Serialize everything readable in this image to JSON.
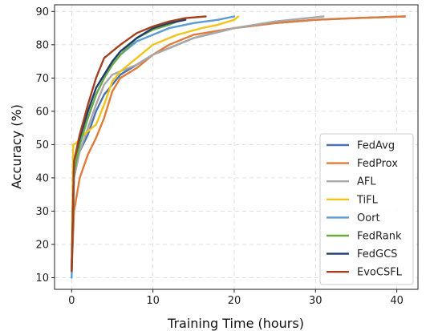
{
  "chart_data": {
    "type": "line",
    "title": "",
    "xlabel": "Training Time (hours)",
    "ylabel": "Accuracy (%)",
    "xlim": [
      -2.1,
      42.6
    ],
    "ylim": [
      6.5,
      92
    ],
    "xticks": [
      0,
      10,
      20,
      30,
      40
    ],
    "yticks": [
      10,
      20,
      30,
      40,
      50,
      60,
      70,
      80,
      90
    ],
    "grid": true,
    "legend_position": "bottom-right",
    "series": [
      {
        "name": "FedAvg",
        "color": "#4a72b0",
        "x": [
          0,
          0.3,
          1,
          2,
          3,
          4,
          5,
          6,
          8,
          10,
          12,
          15,
          20,
          25,
          30,
          35,
          41
        ],
        "y": [
          12,
          42,
          48,
          53,
          60,
          65,
          68,
          71,
          74,
          77,
          79,
          82,
          85,
          86.5,
          87.5,
          88,
          88.5
        ]
      },
      {
        "name": "FedProx",
        "color": "#e07b39",
        "x": [
          0,
          0.3,
          1,
          2,
          3,
          4,
          5,
          6,
          8,
          10,
          12,
          15,
          20,
          25,
          30,
          35,
          41
        ],
        "y": [
          12,
          30,
          40,
          47,
          52,
          58,
          66,
          70,
          73,
          77,
          80,
          83,
          85,
          86.5,
          87.5,
          88,
          88.5
        ]
      },
      {
        "name": "AFL",
        "color": "#a8a8a8",
        "x": [
          0,
          0.3,
          1,
          2,
          3,
          4,
          5,
          6,
          8,
          10,
          12,
          15,
          20,
          25,
          31
        ],
        "y": [
          12,
          40,
          48,
          55,
          62,
          68,
          71,
          72,
          74,
          77,
          79,
          82,
          85,
          87,
          88.5
        ]
      },
      {
        "name": "TiFL",
        "color": "#f2c418",
        "x": [
          0,
          0.2,
          0.6,
          1.5,
          3,
          4,
          5,
          6,
          8,
          10,
          13,
          16,
          18,
          20,
          20.5
        ],
        "y": [
          12,
          50,
          50.5,
          53,
          56,
          62,
          69,
          72,
          76,
          80,
          83,
          85,
          86,
          87.5,
          88.5
        ]
      },
      {
        "name": "Oort",
        "color": "#5b9bd5",
        "x": [
          0,
          0.3,
          1,
          2,
          3,
          4,
          5,
          6,
          8,
          10,
          12,
          15,
          18,
          20
        ],
        "y": [
          10,
          42,
          50,
          58,
          65,
          70,
          74,
          77,
          81,
          83,
          85,
          86.5,
          87.5,
          88.5
        ]
      },
      {
        "name": "FedRank",
        "color": "#6aaa40",
        "x": [
          0,
          0.3,
          1,
          2,
          3,
          4,
          5,
          6,
          8,
          10,
          12,
          13
        ],
        "y": [
          12,
          42,
          50,
          58,
          65,
          70,
          74,
          77,
          82,
          84.5,
          86,
          87
        ]
      },
      {
        "name": "FedGCS",
        "color": "#1f3d6e",
        "x": [
          0,
          0.3,
          1,
          2,
          3,
          4,
          5,
          6,
          8,
          10,
          12,
          14
        ],
        "y": [
          12,
          45,
          52,
          60,
          67,
          71,
          75,
          78,
          82,
          85,
          86.5,
          87.5
        ]
      },
      {
        "name": "EvoCSFL",
        "color": "#a5401f",
        "x": [
          0,
          0.3,
          1,
          2,
          3,
          4,
          5,
          6,
          8,
          10,
          12,
          14,
          16.5
        ],
        "y": [
          12,
          45,
          53,
          62,
          70,
          76,
          78,
          80,
          83.5,
          85.5,
          87,
          88,
          88.5
        ]
      }
    ]
  }
}
